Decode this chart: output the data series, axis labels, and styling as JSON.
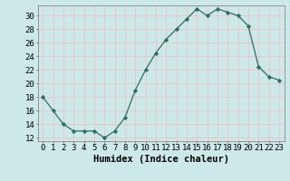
{
  "x": [
    0,
    1,
    2,
    3,
    4,
    5,
    6,
    7,
    8,
    9,
    10,
    11,
    12,
    13,
    14,
    15,
    16,
    17,
    18,
    19,
    20,
    21,
    22,
    23
  ],
  "y": [
    18,
    16,
    14,
    13,
    13,
    13,
    12,
    13,
    15,
    19,
    22,
    24.5,
    26.5,
    28,
    29.5,
    31,
    30,
    31,
    30.5,
    30,
    28.5,
    22.5,
    21,
    20.5
  ],
  "line_color": "#2d6e63",
  "marker": "D",
  "marker_size": 2.2,
  "bg_color": "#cce8e8",
  "grid_color": "#e8c8c8",
  "xlabel": "Humidex (Indice chaleur)",
  "xlim": [
    -0.5,
    23.5
  ],
  "ylim": [
    11.5,
    31.5
  ],
  "yticks": [
    12,
    14,
    16,
    18,
    20,
    22,
    24,
    26,
    28,
    30
  ],
  "xtick_labels": [
    "0",
    "1",
    "2",
    "3",
    "4",
    "5",
    "6",
    "7",
    "8",
    "9",
    "10",
    "11",
    "12",
    "13",
    "14",
    "15",
    "16",
    "17",
    "18",
    "19",
    "20",
    "21",
    "22",
    "23"
  ],
  "xlabel_fontsize": 7.5,
  "tick_fontsize": 6.5
}
